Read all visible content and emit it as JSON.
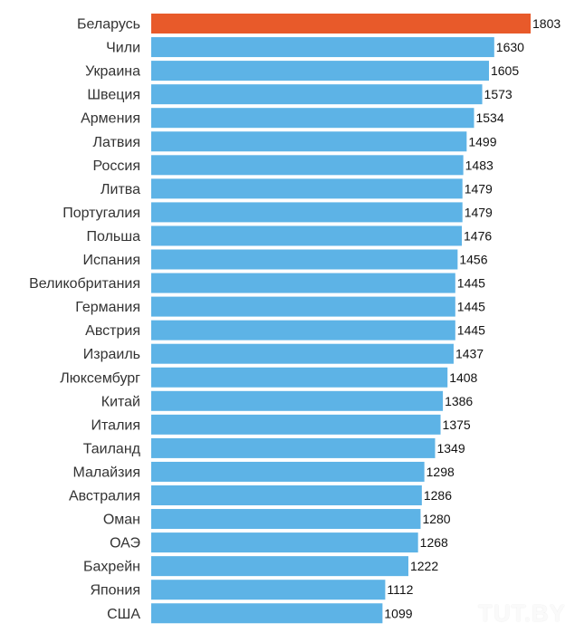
{
  "chart_data": {
    "type": "bar",
    "orientation": "horizontal",
    "categories": [
      "Беларусь",
      "Чили",
      "Украина",
      "Швеция",
      "Армения",
      "Латвия",
      "Россия",
      "Литва",
      "Португалия",
      "Польша",
      "Испания",
      "Великобритания",
      "Германия",
      "Австрия",
      "Израиль",
      "Люксембург",
      "Китай",
      "Италия",
      "Таиланд",
      "Малайзия",
      "Австралия",
      "Оман",
      "ОАЭ",
      "Бахрейн",
      "Япония",
      "США"
    ],
    "values": [
      1803,
      1630,
      1605,
      1573,
      1534,
      1499,
      1483,
      1479,
      1479,
      1476,
      1456,
      1445,
      1445,
      1445,
      1437,
      1408,
      1386,
      1375,
      1349,
      1298,
      1286,
      1280,
      1268,
      1222,
      1112,
      1099
    ],
    "value_labels": [
      "1803",
      "1630",
      "1605",
      "1573",
      "1534",
      "1499",
      "1483",
      "1479",
      "1479",
      "1476",
      "1456",
      "1445",
      "1445",
      "1445",
      "1437",
      "1408",
      "1386",
      "1375",
      "1349",
      "1298",
      "1286",
      "1280",
      "1268",
      "1222",
      "1112",
      "1099"
    ],
    "highlight_category": "Беларусь",
    "colors": {
      "default": "#5DB3E6",
      "highlight": "#E85A2A"
    },
    "xlim": [
      0,
      1803
    ],
    "grid": false,
    "legend": "none"
  },
  "watermark": "TUT.BY"
}
